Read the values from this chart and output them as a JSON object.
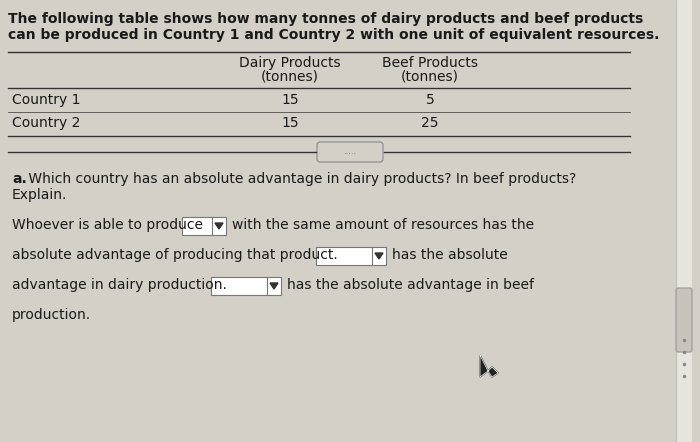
{
  "bg_color": "#d4cfc7",
  "header_text_line1": "The following table shows how many tonnes of dairy products and beef products",
  "header_text_line2": "can be produced in Country 1 and Country 2 with one unit of equivalent resources.",
  "col_header1_line1": "Dairy Products",
  "col_header1_line2": "(tonnes)",
  "col_header2_line1": "Beef Products",
  "col_header2_line2": "(tonnes)",
  "row_labels": [
    "Country 1",
    "Country 2"
  ],
  "col1_values": [
    "15",
    "15"
  ],
  "col2_values": [
    "5",
    "25"
  ],
  "question_bold": "a.",
  "question_rest": " Which country has an absolute advantage in dairy products? In beef products?",
  "question_line2": "Explain.",
  "ans1_before": "Whoever is able to produce",
  "ans1_after": "with the same amount of resources has the",
  "ans2_before": "absolute advantage of producing that product.",
  "ans2_after": "has the absolute",
  "ans3_before": "advantage in dairy production.",
  "ans3_after": "has the absolute advantage in beef",
  "ans4": "production.",
  "dots": ".....",
  "font_size": 10,
  "text_color": "#1a1a1a",
  "scrollbar_dots_color": "#666666",
  "line_color": "#333333",
  "box_edge_color": "#777777",
  "scroll_thumb_color": "#d0ccc5",
  "scroll_bar_color": "#e8e4de"
}
